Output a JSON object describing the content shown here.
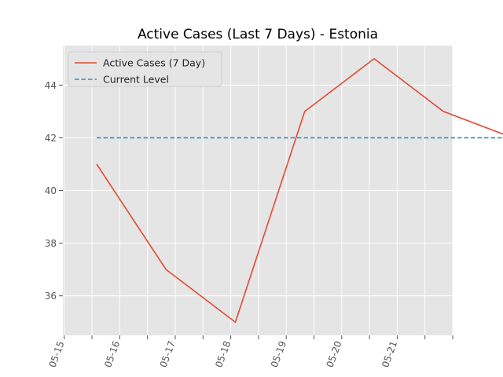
{
  "chart_data": {
    "type": "line",
    "title": "Active Cases (Last 7 Days) - Estonia",
    "xlabel": "",
    "ylabel": "",
    "x_tick_labels": [
      "05-15",
      "05-16",
      "05-17",
      "05-18",
      "05-19",
      "05-20",
      "05-21"
    ],
    "y_tick_labels": [
      "36",
      "38",
      "40",
      "42",
      "44"
    ],
    "y_ticks": [
      36,
      38,
      40,
      42,
      44
    ],
    "ylim": [
      34.5,
      45.5
    ],
    "grid": true,
    "legend_placement": "top-left",
    "series": [
      {
        "name": "Active Cases (7 Day)",
        "style": "solid",
        "color": "#E24A33",
        "points": [
          {
            "date": "2020-05-15 14:00",
            "value": 41
          },
          {
            "date": "2020-05-16 20:00",
            "value": 37
          },
          {
            "date": "2020-05-18 02:00",
            "value": 35
          },
          {
            "date": "2020-05-19 08:00",
            "value": 43
          },
          {
            "date": "2020-05-20 14:00",
            "value": 45
          },
          {
            "date": "2020-05-21 20:00",
            "value": 43
          },
          {
            "date": "2020-05-23 02:00",
            "value": 42
          }
        ]
      },
      {
        "name": "Current Level",
        "style": "dashed",
        "color": "#348ABD",
        "points": [
          {
            "date": "2020-05-15 14:00",
            "value": 42
          },
          {
            "date": "2020-05-23 02:00",
            "value": 42
          }
        ]
      }
    ],
    "colors": {
      "plot_background": "#E5E5E5",
      "grid": "#FFFFFF",
      "tick_label": "#555555"
    }
  }
}
